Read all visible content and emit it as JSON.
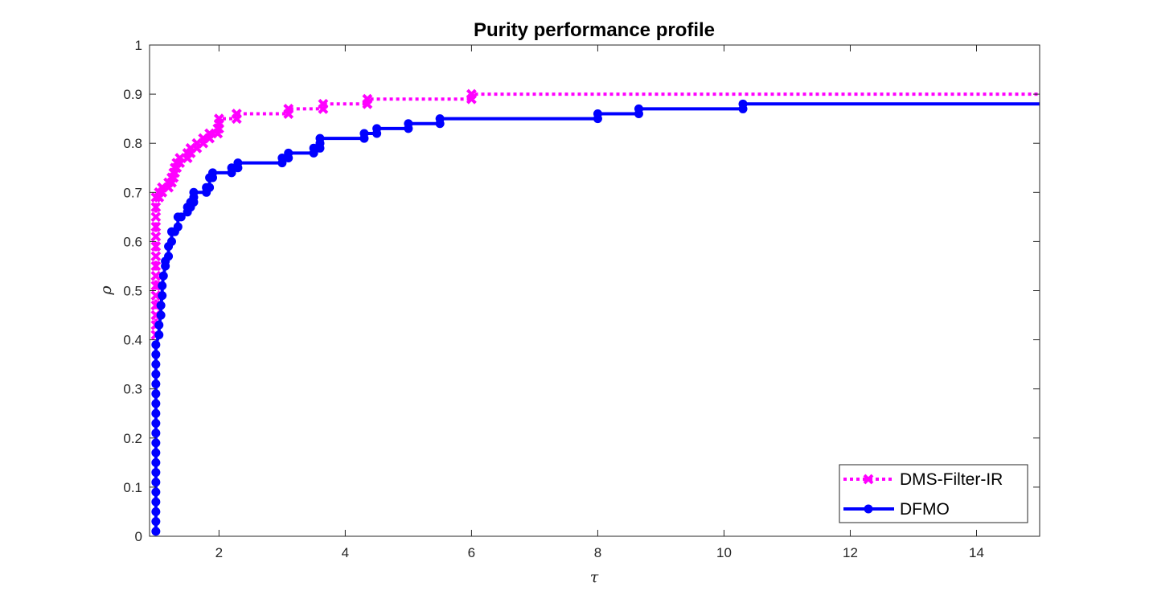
{
  "chart_data": {
    "type": "line",
    "title": "Purity performance profile",
    "xlabel": "τ",
    "ylabel": "ρ",
    "xlim": [
      0.9,
      15
    ],
    "ylim": [
      0,
      1
    ],
    "xticks": [
      "2",
      "4",
      "6",
      "8",
      "10",
      "12",
      "14"
    ],
    "xtick_values": [
      2,
      4,
      6,
      8,
      10,
      12,
      14
    ],
    "yticks": [
      "0",
      "0.1",
      "0.2",
      "0.3",
      "0.4",
      "0.5",
      "0.6",
      "0.7",
      "0.8",
      "0.9",
      "1"
    ],
    "ytick_values": [
      0,
      0.1,
      0.2,
      0.3,
      0.4,
      0.5,
      0.6,
      0.7,
      0.8,
      0.9,
      1
    ],
    "grid": false,
    "box": true,
    "legend_position": "bottom-right",
    "series": [
      {
        "name": "DMS-Filter-IR",
        "color": "#ff00ff",
        "line_style": "dotted",
        "marker": "x",
        "points": [
          [
            1.0,
            0.41
          ],
          [
            1.0,
            0.43
          ],
          [
            1.0,
            0.45
          ],
          [
            1.0,
            0.47
          ],
          [
            1.0,
            0.49
          ],
          [
            1.0,
            0.51
          ],
          [
            1.0,
            0.53
          ],
          [
            1.0,
            0.55
          ],
          [
            1.0,
            0.57
          ],
          [
            1.0,
            0.59
          ],
          [
            1.0,
            0.61
          ],
          [
            1.0,
            0.63
          ],
          [
            1.0,
            0.65
          ],
          [
            1.0,
            0.67
          ],
          [
            1.0,
            0.69
          ],
          [
            1.05,
            0.69
          ],
          [
            1.05,
            0.7
          ],
          [
            1.1,
            0.7
          ],
          [
            1.1,
            0.71
          ],
          [
            1.2,
            0.71
          ],
          [
            1.2,
            0.72
          ],
          [
            1.25,
            0.72
          ],
          [
            1.25,
            0.73
          ],
          [
            1.28,
            0.73
          ],
          [
            1.28,
            0.74
          ],
          [
            1.3,
            0.74
          ],
          [
            1.3,
            0.75
          ],
          [
            1.33,
            0.75
          ],
          [
            1.33,
            0.76
          ],
          [
            1.38,
            0.76
          ],
          [
            1.38,
            0.77
          ],
          [
            1.5,
            0.77
          ],
          [
            1.5,
            0.78
          ],
          [
            1.55,
            0.78
          ],
          [
            1.55,
            0.79
          ],
          [
            1.65,
            0.79
          ],
          [
            1.65,
            0.8
          ],
          [
            1.75,
            0.8
          ],
          [
            1.75,
            0.81
          ],
          [
            1.85,
            0.81
          ],
          [
            1.85,
            0.82
          ],
          [
            1.98,
            0.82
          ],
          [
            1.98,
            0.83
          ],
          [
            2.0,
            0.83
          ],
          [
            2.0,
            0.84
          ],
          [
            2.0,
            0.85
          ],
          [
            2.28,
            0.85
          ],
          [
            2.28,
            0.86
          ],
          [
            3.1,
            0.86
          ],
          [
            3.1,
            0.87
          ],
          [
            3.65,
            0.87
          ],
          [
            3.65,
            0.88
          ],
          [
            4.35,
            0.88
          ],
          [
            4.35,
            0.89
          ],
          [
            6.0,
            0.89
          ],
          [
            6.0,
            0.9
          ],
          [
            15.0,
            0.9
          ]
        ]
      },
      {
        "name": "DFMO",
        "color": "#0000ff",
        "line_style": "solid",
        "marker": "o",
        "points": [
          [
            1.0,
            0.01
          ],
          [
            1.0,
            0.03
          ],
          [
            1.0,
            0.05
          ],
          [
            1.0,
            0.07
          ],
          [
            1.0,
            0.09
          ],
          [
            1.0,
            0.11
          ],
          [
            1.0,
            0.13
          ],
          [
            1.0,
            0.15
          ],
          [
            1.0,
            0.17
          ],
          [
            1.0,
            0.19
          ],
          [
            1.0,
            0.21
          ],
          [
            1.0,
            0.23
          ],
          [
            1.0,
            0.25
          ],
          [
            1.0,
            0.27
          ],
          [
            1.0,
            0.29
          ],
          [
            1.0,
            0.31
          ],
          [
            1.0,
            0.33
          ],
          [
            1.0,
            0.35
          ],
          [
            1.0,
            0.37
          ],
          [
            1.0,
            0.39
          ],
          [
            1.05,
            0.41
          ],
          [
            1.05,
            0.43
          ],
          [
            1.08,
            0.45
          ],
          [
            1.08,
            0.47
          ],
          [
            1.1,
            0.49
          ],
          [
            1.1,
            0.51
          ],
          [
            1.12,
            0.53
          ],
          [
            1.15,
            0.55
          ],
          [
            1.15,
            0.56
          ],
          [
            1.2,
            0.57
          ],
          [
            1.2,
            0.59
          ],
          [
            1.25,
            0.6
          ],
          [
            1.25,
            0.62
          ],
          [
            1.3,
            0.62
          ],
          [
            1.35,
            0.63
          ],
          [
            1.35,
            0.65
          ],
          [
            1.4,
            0.65
          ],
          [
            1.5,
            0.66
          ],
          [
            1.5,
            0.67
          ],
          [
            1.55,
            0.67
          ],
          [
            1.55,
            0.68
          ],
          [
            1.6,
            0.68
          ],
          [
            1.6,
            0.69
          ],
          [
            1.6,
            0.7
          ],
          [
            1.8,
            0.7
          ],
          [
            1.8,
            0.71
          ],
          [
            1.85,
            0.71
          ],
          [
            1.85,
            0.73
          ],
          [
            1.9,
            0.73
          ],
          [
            1.9,
            0.74
          ],
          [
            2.2,
            0.74
          ],
          [
            2.2,
            0.75
          ],
          [
            2.3,
            0.75
          ],
          [
            2.3,
            0.76
          ],
          [
            3.0,
            0.76
          ],
          [
            3.0,
            0.77
          ],
          [
            3.1,
            0.77
          ],
          [
            3.1,
            0.78
          ],
          [
            3.5,
            0.78
          ],
          [
            3.5,
            0.79
          ],
          [
            3.6,
            0.79
          ],
          [
            3.6,
            0.8
          ],
          [
            3.6,
            0.81
          ],
          [
            4.3,
            0.81
          ],
          [
            4.3,
            0.82
          ],
          [
            4.5,
            0.82
          ],
          [
            4.5,
            0.83
          ],
          [
            5.0,
            0.83
          ],
          [
            5.0,
            0.84
          ],
          [
            5.5,
            0.84
          ],
          [
            5.5,
            0.85
          ],
          [
            8.0,
            0.85
          ],
          [
            8.0,
            0.86
          ],
          [
            8.65,
            0.86
          ],
          [
            8.65,
            0.87
          ],
          [
            10.3,
            0.87
          ],
          [
            10.3,
            0.88
          ],
          [
            15.0,
            0.88
          ]
        ]
      }
    ]
  }
}
